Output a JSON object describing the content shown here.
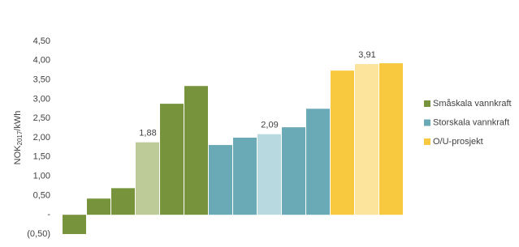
{
  "chart_data": {
    "type": "bar",
    "y_label": {
      "main": "NOK",
      "sub": "2017",
      "unit": "/kWh"
    },
    "categories": [
      null,
      null,
      null,
      null,
      null,
      null,
      null,
      null,
      null,
      null,
      null,
      null,
      null,
      null
    ],
    "series": [
      {
        "name": "Småskala vannkraft",
        "color": "#77933c",
        "highlight_color": "#bccb98",
        "values": [
          -0.5,
          0.42,
          0.69,
          1.88,
          2.88,
          3.34,
          null,
          null,
          null,
          null,
          null,
          null,
          null,
          null
        ],
        "value_labels": [
          null,
          null,
          null,
          "1,88",
          null,
          null,
          null,
          null,
          null,
          null,
          null,
          null,
          null,
          null
        ]
      },
      {
        "name": "Storskala vannkraft",
        "color": "#6aaab6",
        "highlight_color": "#b8d9df",
        "values": [
          null,
          null,
          null,
          null,
          null,
          null,
          1.81,
          2.0,
          2.09,
          2.27,
          2.75,
          null,
          null,
          null
        ],
        "value_labels": [
          null,
          null,
          null,
          null,
          null,
          null,
          null,
          null,
          "2,09",
          null,
          null,
          null,
          null,
          null
        ]
      },
      {
        "name": "O/U-prosjekt",
        "color": "#f8c93e",
        "highlight_color": "#fce49c",
        "values": [
          null,
          null,
          null,
          null,
          null,
          null,
          null,
          null,
          null,
          null,
          null,
          3.74,
          3.91,
          3.93
        ],
        "value_labels": [
          null,
          null,
          null,
          null,
          null,
          null,
          null,
          null,
          null,
          null,
          null,
          null,
          "3,91",
          null
        ]
      }
    ],
    "ylim": [
      -0.5,
      4.5
    ],
    "yticks": [
      {
        "value": -0.5,
        "label": "(0,50)"
      },
      {
        "value": 0,
        "label": "-"
      },
      {
        "value": 0.5,
        "label": "0,50"
      },
      {
        "value": 1,
        "label": "1,00"
      },
      {
        "value": 1.5,
        "label": "1,50"
      },
      {
        "value": 2,
        "label": "2,00"
      },
      {
        "value": 2.5,
        "label": "2,50"
      },
      {
        "value": 3,
        "label": "3,00"
      },
      {
        "value": 3.5,
        "label": "3,50"
      },
      {
        "value": 4,
        "label": "4,00"
      },
      {
        "value": 4.5,
        "label": "4,50"
      }
    ],
    "grid": false,
    "legend": "right"
  }
}
